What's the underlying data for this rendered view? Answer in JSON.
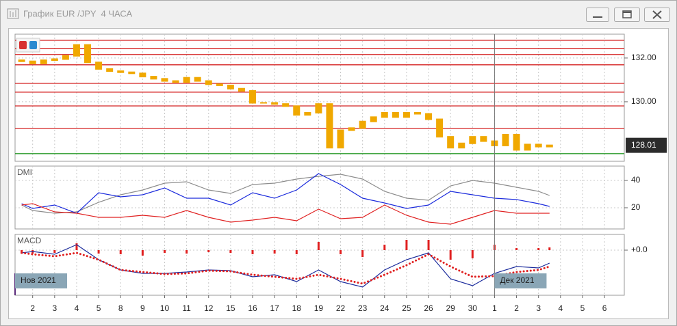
{
  "window": {
    "title": "График EUR /JPY  4 ЧАСА"
  },
  "chart_data": [
    {
      "type": "candlestick",
      "color": "#f0a800",
      "xlim": [
        -0.8,
        26.9
      ],
      "ylim": [
        127.28,
        133.09
      ],
      "yticks": [
        {
          "value": 132,
          "label": "132.00"
        },
        {
          "value": 130,
          "label": "130.00"
        }
      ],
      "grid": true,
      "x": [
        -0.5,
        0,
        0.5,
        1,
        1.5,
        2,
        2.5,
        3,
        3.5,
        4,
        4.5,
        5,
        5.5,
        6,
        6.5,
        7,
        7.5,
        8,
        8.5,
        9,
        9.5,
        10,
        10.5,
        11,
        11.5,
        12,
        12.5,
        13,
        13.5,
        14,
        14.5,
        15,
        15.5,
        16,
        16.5,
        17,
        17.5,
        18,
        18.5,
        19,
        19.5,
        20,
        20.5,
        21,
        21.5,
        22,
        22.5,
        23,
        23.5
      ],
      "open": [
        131.9,
        131.85,
        131.75,
        131.9,
        131.95,
        132.1,
        132.6,
        131.8,
        131.5,
        131.4,
        131.35,
        131.3,
        131.15,
        131.05,
        130.95,
        130.9,
        131.1,
        130.95,
        130.8,
        130.75,
        130.6,
        130.5,
        129.95,
        129.95,
        129.9,
        129.8,
        129.4,
        129.5,
        129.9,
        127.9,
        128.7,
        128.8,
        129.1,
        129.3,
        129.5,
        129.3,
        129.5,
        129.45,
        129.2,
        128.4,
        127.9,
        128.1,
        128.4,
        128.2,
        128.0,
        128.5,
        127.8,
        128.05,
        127.95
      ],
      "close": [
        131.85,
        131.75,
        131.9,
        131.95,
        132.1,
        132.6,
        131.8,
        131.5,
        131.4,
        131.35,
        131.3,
        131.15,
        131.05,
        130.95,
        130.9,
        131.1,
        130.95,
        130.8,
        130.75,
        130.6,
        130.5,
        129.95,
        129.95,
        129.9,
        129.8,
        129.4,
        129.5,
        129.9,
        127.9,
        128.7,
        128.8,
        129.1,
        129.3,
        129.5,
        129.3,
        129.5,
        129.45,
        129.2,
        128.4,
        127.9,
        128.1,
        128.4,
        128.2,
        128.0,
        128.5,
        127.8,
        128.05,
        127.95,
        128.01
      ],
      "levels": [
        {
          "value": 132.81,
          "color": "#d42020"
        },
        {
          "value": 132.44,
          "color": "#d42020"
        },
        {
          "value": 132.16,
          "color": "#d42020"
        },
        {
          "value": 131.69,
          "color": "#d42020"
        },
        {
          "value": 130.84,
          "color": "#d42020"
        },
        {
          "value": 130.44,
          "color": "#d42020"
        },
        {
          "value": 129.81,
          "color": "#d42020"
        },
        {
          "value": 128.78,
          "color": "#d42020"
        },
        {
          "value": 127.63,
          "color": "#2a9a2a"
        }
      ],
      "last_value": 128.01
    },
    {
      "type": "line",
      "title": "DMI",
      "xlim": [
        -0.8,
        26.9
      ],
      "ylim": [
        4.5,
        50.5
      ],
      "yticks": [
        40,
        20
      ],
      "grid": true,
      "x": [
        -0.5,
        0,
        1,
        2,
        3,
        4,
        5,
        6,
        7,
        8,
        9,
        10,
        11,
        12,
        13,
        14,
        15,
        16,
        17,
        18,
        19,
        20,
        21,
        22,
        23,
        23.5
      ],
      "series": [
        {
          "color": "#8c8c8c",
          "values": [
            22,
            18,
            16,
            17,
            24,
            29.5,
            33,
            38,
            39,
            33,
            30.5,
            37,
            38,
            41,
            43,
            44.5,
            41,
            32,
            27,
            25.5,
            36,
            40,
            38,
            35,
            32,
            29
          ]
        },
        {
          "color": "#1a2adc",
          "values": [
            23,
            19.5,
            22,
            16,
            31,
            28,
            29.5,
            34.5,
            27,
            27,
            22,
            31,
            27,
            33,
            45,
            37,
            27,
            23.5,
            19.5,
            22,
            32,
            29.5,
            27,
            26,
            23,
            21
          ]
        },
        {
          "color": "#e02020",
          "values": [
            22,
            23,
            17,
            16,
            13,
            13,
            14.5,
            13,
            18,
            13,
            9.5,
            11,
            13,
            10.5,
            19,
            12,
            13,
            22,
            14.5,
            9.5,
            8,
            13,
            18,
            16,
            16,
            16
          ]
        }
      ]
    },
    {
      "type": "line",
      "title": "MACD",
      "xlim": [
        -0.8,
        26.9
      ],
      "ylim": [
        -0.66,
        0.23
      ],
      "yticks": [
        {
          "value": 0,
          "label": "+0.0"
        }
      ],
      "grid": true,
      "x": [
        -0.5,
        0,
        1,
        2,
        3,
        4,
        5,
        6,
        7,
        8,
        9,
        10,
        11,
        12,
        13,
        14,
        15,
        16,
        17,
        18,
        19,
        20,
        21,
        22,
        23,
        23.5
      ],
      "series": [
        {
          "type": "bar",
          "color": "#e02020",
          "values": [
            -0.05,
            -0.05,
            -0.04,
            0.1,
            -0.05,
            -0.06,
            -0.08,
            -0.04,
            -0.05,
            -0.03,
            -0.04,
            -0.06,
            -0.05,
            -0.06,
            0.12,
            -0.06,
            -0.1,
            0.08,
            0.15,
            0.15,
            -0.14,
            -0.12,
            0.08,
            0.03,
            0.03,
            0.04
          ]
        },
        {
          "type": "line",
          "color": "#1a2a9c",
          "values": [
            -0.04,
            -0.02,
            -0.06,
            0.08,
            -0.14,
            -0.29,
            -0.34,
            -0.34,
            -0.32,
            -0.29,
            -0.3,
            -0.39,
            -0.36,
            -0.46,
            -0.29,
            -0.46,
            -0.54,
            -0.29,
            -0.14,
            -0.04,
            -0.42,
            -0.52,
            -0.34,
            -0.24,
            -0.26,
            -0.19
          ]
        },
        {
          "type": "line",
          "dash": true,
          "color": "#e02020",
          "values": [
            -0.04,
            -0.06,
            -0.09,
            -0.04,
            -0.14,
            -0.29,
            -0.32,
            -0.35,
            -0.34,
            -0.3,
            -0.31,
            -0.36,
            -0.39,
            -0.42,
            -0.36,
            -0.42,
            -0.49,
            -0.36,
            -0.22,
            -0.06,
            -0.24,
            -0.39,
            -0.38,
            -0.32,
            -0.29,
            -0.24
          ]
        }
      ],
      "xticks": [
        {
          "value": 0,
          "label": "2"
        },
        {
          "value": 1,
          "label": "3"
        },
        {
          "value": 2,
          "label": "4"
        },
        {
          "value": 3,
          "label": "5"
        },
        {
          "value": 4,
          "label": "8"
        },
        {
          "value": 5,
          "label": "9"
        },
        {
          "value": 6,
          "label": "10"
        },
        {
          "value": 7,
          "label": "11"
        },
        {
          "value": 8,
          "label": "12"
        },
        {
          "value": 9,
          "label": "15"
        },
        {
          "value": 10,
          "label": "16"
        },
        {
          "value": 11,
          "label": "17"
        },
        {
          "value": 12,
          "label": "18"
        },
        {
          "value": 13,
          "label": "19"
        },
        {
          "value": 14,
          "label": "22"
        },
        {
          "value": 15,
          "label": "23"
        },
        {
          "value": 16,
          "label": "24"
        },
        {
          "value": 17,
          "label": "25"
        },
        {
          "value": 18,
          "label": "26"
        },
        {
          "value": 19,
          "label": "29"
        },
        {
          "value": 20,
          "label": "30"
        },
        {
          "value": 21,
          "label": "1"
        },
        {
          "value": 22,
          "label": "2"
        },
        {
          "value": 23,
          "label": "3"
        },
        {
          "value": 24,
          "label": "4"
        },
        {
          "value": 25,
          "label": "5"
        },
        {
          "value": 26,
          "label": "6"
        }
      ],
      "period_labels": [
        {
          "value": -0.8,
          "label": "Нов 2021"
        },
        {
          "value": 21,
          "label": "Дек 2021"
        }
      ]
    }
  ]
}
